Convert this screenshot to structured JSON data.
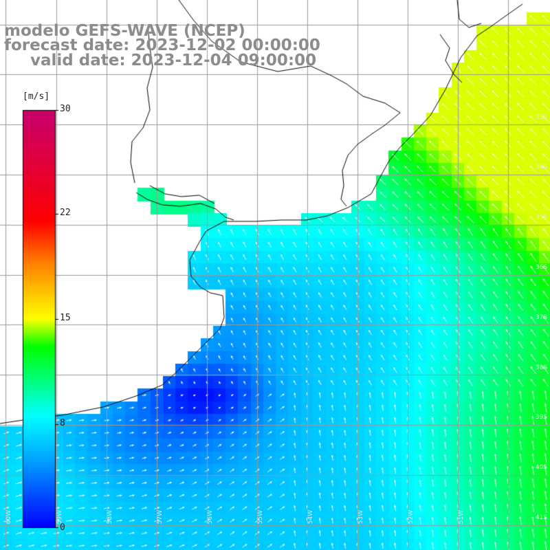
{
  "title": {
    "line1": "modelo GEFS-WAVE (NCEP)",
    "line2": "forecast date: 2023-12-02 00:00:00",
    "line3": "valid date: 2023-12-04 09:00:00"
  },
  "colorbar": {
    "unit": "[m/s]",
    "ticks": [
      "30",
      "22",
      "15",
      "8",
      "0"
    ],
    "stops": [
      "#0000ff",
      "#00a8ff",
      "#00ffff",
      "#00ff00",
      "#ffff00",
      "#ff8000",
      "#ff0000",
      "#c8006e"
    ]
  },
  "colors": {
    "land": "#ffffff",
    "coast": "#000000",
    "grid": "#9a9a9a",
    "arrows": "#ffffff"
  },
  "lat_labels": [
    "33S",
    "34S",
    "35S",
    "36S",
    "37S",
    "38S",
    "39S",
    "40S",
    "41S"
  ],
  "lon_labels": [
    "60W",
    "59W",
    "58W",
    "57W",
    "56W",
    "55W",
    "54W",
    "53W",
    "52W",
    "51W"
  ]
}
